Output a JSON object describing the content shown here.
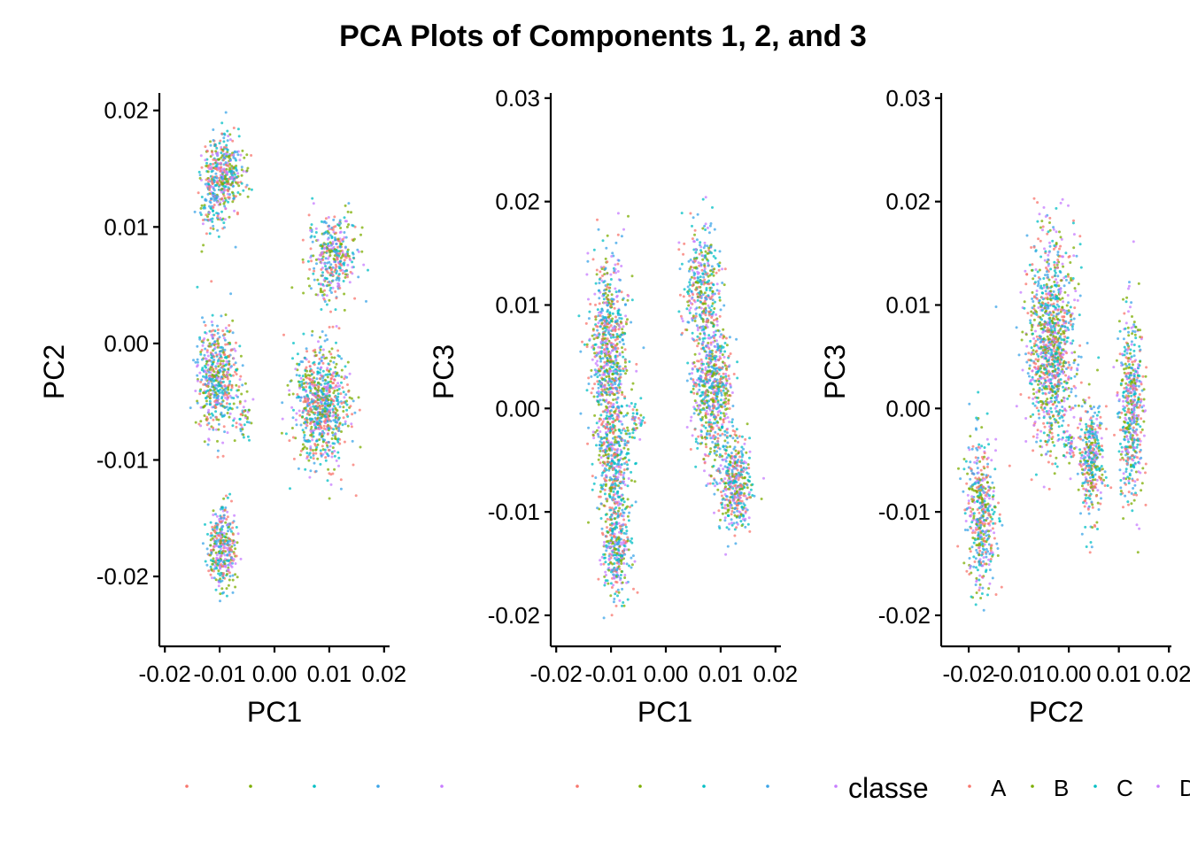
{
  "title": "PCA Plots of Components 1, 2, and 3",
  "colors": {
    "A": "#F8766D",
    "B": "#7CAE00",
    "C": "#00BFC4",
    "D": "#C77CFF",
    "D_blue": "#3BA4E8"
  },
  "chart_data": [
    {
      "type": "scatter",
      "xlabel": "PC1",
      "ylabel": "PC2",
      "xlim": [
        -0.021,
        0.021
      ],
      "ylim": [
        -0.026,
        0.0215
      ],
      "xticks": [
        -0.02,
        -0.01,
        0.0,
        0.01,
        0.02
      ],
      "xtick_labels": [
        "-0.02",
        "-0.01",
        "0.00",
        "0.01",
        "0.02"
      ],
      "yticks": [
        -0.02,
        -0.01,
        0.0,
        0.01,
        0.02
      ],
      "ytick_labels": [
        "-0.02",
        "-0.01",
        "0.00",
        "0.01",
        "0.02"
      ],
      "clusters": [
        {
          "cx": -0.0095,
          "cy": 0.0145,
          "sx": 0.0018,
          "sy": 0.0017,
          "n": 420
        },
        {
          "cx": -0.0115,
          "cy": 0.0115,
          "sx": 0.0015,
          "sy": 0.0012,
          "n": 70
        },
        {
          "cx": 0.0105,
          "cy": 0.0075,
          "sx": 0.0022,
          "sy": 0.0018,
          "n": 380
        },
        {
          "cx": -0.0105,
          "cy": -0.003,
          "sx": 0.0018,
          "sy": 0.0022,
          "n": 520
        },
        {
          "cx": 0.0085,
          "cy": -0.0055,
          "sx": 0.0025,
          "sy": 0.0025,
          "n": 800
        },
        {
          "cx": -0.0095,
          "cy": -0.0175,
          "sx": 0.0012,
          "sy": 0.0018,
          "n": 340
        },
        {
          "cx": -0.0055,
          "cy": -0.0065,
          "sx": 0.0007,
          "sy": 0.0011,
          "n": 40
        }
      ]
    },
    {
      "type": "scatter",
      "xlabel": "PC1",
      "ylabel": "PC3",
      "xlim": [
        -0.021,
        0.021
      ],
      "ylim": [
        -0.023,
        0.0305
      ],
      "xticks": [
        -0.02,
        -0.01,
        0.0,
        0.01,
        0.02
      ],
      "xtick_labels": [
        "-0.02",
        "-0.01",
        "0.00",
        "0.01",
        "0.02"
      ],
      "yticks": [
        -0.02,
        -0.01,
        0.0,
        0.01,
        0.02,
        0.03
      ],
      "ytick_labels": [
        "-0.02",
        "-0.01",
        "0.00",
        "0.01",
        "0.02",
        "0.03"
      ],
      "clusters": [
        {
          "cx": -0.0105,
          "cy": 0.0055,
          "sx": 0.0018,
          "sy": 0.0045,
          "n": 700
        },
        {
          "cx": -0.0095,
          "cy": -0.005,
          "sx": 0.0015,
          "sy": 0.0035,
          "n": 450
        },
        {
          "cx": -0.009,
          "cy": -0.014,
          "sx": 0.0012,
          "sy": 0.0022,
          "n": 300
        },
        {
          "cx": 0.0065,
          "cy": 0.012,
          "sx": 0.0017,
          "sy": 0.003,
          "n": 350
        },
        {
          "cx": 0.0085,
          "cy": 0.002,
          "sx": 0.0018,
          "sy": 0.0035,
          "n": 650
        },
        {
          "cx": 0.0125,
          "cy": -0.0075,
          "sx": 0.0015,
          "sy": 0.0022,
          "n": 400
        },
        {
          "cx": -0.0055,
          "cy": -0.001,
          "sx": 0.0007,
          "sy": 0.0009,
          "n": 40
        }
      ]
    },
    {
      "type": "scatter",
      "xlabel": "PC2",
      "ylabel": "PC3",
      "xlim": [
        -0.0255,
        0.0205
      ],
      "ylim": [
        -0.023,
        0.0305
      ],
      "xticks": [
        -0.02,
        -0.01,
        0.0,
        0.01,
        0.02
      ],
      "xtick_labels": [
        "-0.02",
        "-0.01",
        "0.00",
        "0.01",
        "0.02"
      ],
      "yticks": [
        -0.02,
        -0.01,
        0.0,
        0.01,
        0.02,
        0.03
      ],
      "ytick_labels": [
        "-0.02",
        "-0.01",
        "0.00",
        "0.01",
        "0.02",
        "0.03"
      ],
      "clusters": [
        {
          "cx": -0.0175,
          "cy": -0.01,
          "sx": 0.0015,
          "sy": 0.0035,
          "n": 450
        },
        {
          "cx": -0.0035,
          "cy": 0.006,
          "sx": 0.0023,
          "sy": 0.005,
          "n": 1100
        },
        {
          "cx": 0.0045,
          "cy": -0.005,
          "sx": 0.0012,
          "sy": 0.003,
          "n": 350
        },
        {
          "cx": 0.0125,
          "cy": 0.0,
          "sx": 0.0012,
          "sy": 0.0045,
          "n": 500
        },
        {
          "cx": 0.0,
          "cy": -0.0035,
          "sx": 0.0007,
          "sy": 0.0008,
          "n": 40
        }
      ]
    }
  ],
  "legend": {
    "title": "classe",
    "items": [
      {
        "label": "A",
        "color": "#F8766D"
      },
      {
        "label": "B",
        "color": "#7CAE00"
      },
      {
        "label": "C",
        "color": "#00BFC4"
      },
      {
        "label": "D",
        "color": "#C77CFF"
      }
    ]
  }
}
